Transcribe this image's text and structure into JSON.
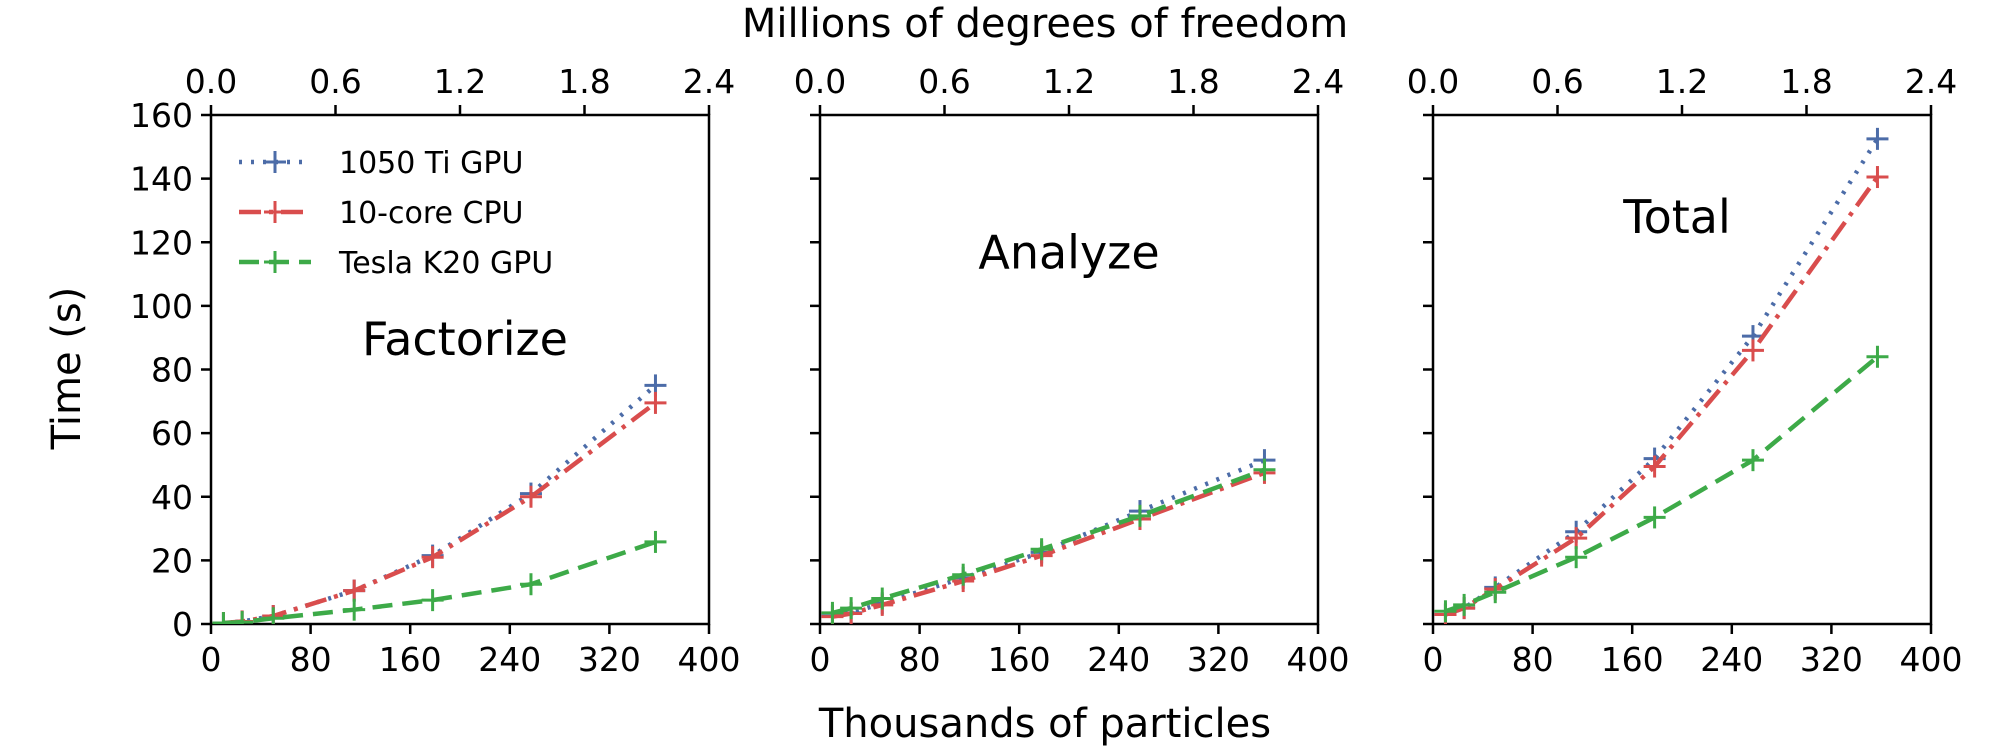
{
  "figure": {
    "top_axis_label": "Millions of degrees of freedom",
    "bottom_axis_label": "Thousands of particles",
    "y_axis_label": "Time (s)"
  },
  "legend": {
    "placement": "top-left of first panel",
    "items": [
      {
        "label": "1050 Ti GPU",
        "color": "#4C6CA8",
        "style": "dotted"
      },
      {
        "label": "10-core CPU",
        "color": "#D94D4D",
        "style": "dash-dot"
      },
      {
        "label": "Tesla K20 GPU",
        "color": "#3DAA48",
        "style": "dashed"
      }
    ]
  },
  "chart_data": [
    {
      "type": "line",
      "title": "Factorize",
      "xlabel": "Thousands of particles",
      "x2label": "Millions of degrees of freedom",
      "ylabel": "Time (s)",
      "xlim": [
        0,
        400
      ],
      "x2lim": [
        0.0,
        2.4
      ],
      "ylim": [
        0,
        160
      ],
      "x_ticks": [
        "0",
        "80",
        "160",
        "240",
        "320",
        "400"
      ],
      "x2_ticks": [
        "0.0",
        "0.6",
        "1.2",
        "1.8",
        "2.4"
      ],
      "y_ticks": [
        "0",
        "20",
        "40",
        "60",
        "80",
        "100",
        "120",
        "140",
        "160"
      ],
      "show_y_tick_labels": true,
      "grid": false,
      "series": [
        {
          "name": "1050 Ti GPU",
          "x": [
            10,
            25,
            50,
            115,
            178,
            257,
            357
          ],
          "y": [
            0.3,
            0.8,
            2.5,
            10.5,
            21.5,
            41,
            75
          ]
        },
        {
          "name": "10-core CPU",
          "x": [
            10,
            25,
            50,
            115,
            178,
            257,
            357
          ],
          "y": [
            0.3,
            0.8,
            2.5,
            10.5,
            21,
            40,
            69.5
          ]
        },
        {
          "name": "Tesla K20 GPU",
          "x": [
            10,
            25,
            50,
            115,
            178,
            257,
            357
          ],
          "y": [
            0.3,
            0.6,
            1.8,
            4.5,
            7.5,
            12.5,
            25.8
          ]
        }
      ]
    },
    {
      "type": "line",
      "title": "Analyze",
      "xlabel": "Thousands of particles",
      "x2label": "Millions of degrees of freedom",
      "ylabel": "Time (s)",
      "xlim": [
        0,
        400
      ],
      "x2lim": [
        0.0,
        2.4
      ],
      "ylim": [
        0,
        160
      ],
      "x_ticks": [
        "0",
        "80",
        "160",
        "240",
        "320",
        "400"
      ],
      "x2_ticks": [
        "0.0",
        "0.6",
        "1.2",
        "1.8",
        "2.4"
      ],
      "y_ticks": [
        "0",
        "20",
        "40",
        "60",
        "80",
        "100",
        "120",
        "140",
        "160"
      ],
      "show_y_tick_labels": false,
      "grid": false,
      "series": [
        {
          "name": "1050 Ti GPU",
          "x": [
            10,
            25,
            50,
            115,
            178,
            257,
            357
          ],
          "y": [
            2.5,
            3.5,
            6.5,
            14.5,
            22.5,
            35.5,
            51.5
          ]
        },
        {
          "name": "10-core CPU",
          "x": [
            10,
            25,
            50,
            115,
            178,
            257,
            357
          ],
          "y": [
            2.3,
            3.3,
            6.0,
            13.5,
            21.5,
            33,
            47.5
          ]
        },
        {
          "name": "Tesla K20 GPU",
          "x": [
            10,
            25,
            50,
            115,
            178,
            257,
            357
          ],
          "y": [
            3.5,
            5.0,
            8.0,
            15.5,
            23.5,
            34,
            48.5
          ]
        }
      ]
    },
    {
      "type": "line",
      "title": "Total",
      "xlabel": "Thousands of particles",
      "x2label": "Millions of degrees of freedom",
      "ylabel": "Time (s)",
      "xlim": [
        0,
        400
      ],
      "x2lim": [
        0.0,
        2.4
      ],
      "ylim": [
        0,
        160
      ],
      "x_ticks": [
        "0",
        "80",
        "160",
        "240",
        "320",
        "400"
      ],
      "x2_ticks": [
        "0.0",
        "0.6",
        "1.2",
        "1.8",
        "2.4"
      ],
      "y_ticks": [
        "0",
        "20",
        "40",
        "60",
        "80",
        "100",
        "120",
        "140",
        "160"
      ],
      "show_y_tick_labels": false,
      "grid": false,
      "series": [
        {
          "name": "1050 Ti GPU",
          "x": [
            10,
            25,
            50,
            115,
            178,
            257,
            357
          ],
          "y": [
            3,
            5,
            11.5,
            29,
            52,
            90.5,
            152.5
          ]
        },
        {
          "name": "10-core CPU",
          "x": [
            10,
            25,
            50,
            115,
            178,
            257,
            357
          ],
          "y": [
            3,
            5,
            11,
            27,
            49.5,
            86,
            140.5
          ]
        },
        {
          "name": "Tesla K20 GPU",
          "x": [
            10,
            25,
            50,
            115,
            178,
            257,
            357
          ],
          "y": [
            4,
            6,
            10,
            21,
            33.5,
            51.5,
            84
          ]
        }
      ]
    }
  ]
}
